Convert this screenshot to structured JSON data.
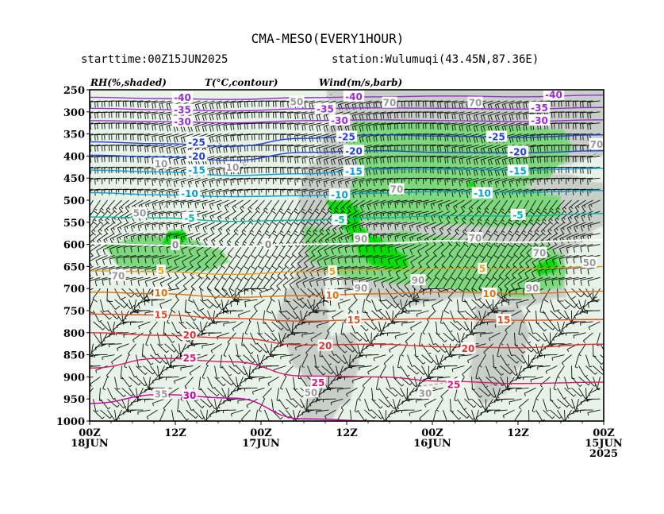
{
  "title": "CMA-MESO(EVERY1HOUR)",
  "starttime": "starttime:00Z15JUN2025",
  "station": "station:Wulumuqi(43.45N,87.36E)",
  "legend": {
    "rh": "RH(%,shaded)",
    "temp": "T(°C,contour)",
    "wind": "Wind(m/s,barb)"
  },
  "chart_data": {
    "type": "heatmap",
    "x_ticks": [
      {
        "hours": 0,
        "line1": "00Z",
        "line2": "18JUN",
        "line3": ""
      },
      {
        "hours": 12,
        "line1": "12Z",
        "line2": "",
        "line3": ""
      },
      {
        "hours": 24,
        "line1": "00Z",
        "line2": "17JUN",
        "line3": ""
      },
      {
        "hours": 36,
        "line1": "12Z",
        "line2": "",
        "line3": ""
      },
      {
        "hours": 48,
        "line1": "00Z",
        "line2": "16JUN",
        "line3": ""
      },
      {
        "hours": 60,
        "line1": "12Z",
        "line2": "",
        "line3": ""
      },
      {
        "hours": 72,
        "line1": "00Z",
        "line2": "15JUN",
        "line3": "2025"
      }
    ],
    "y_levels_hPa": [
      250,
      300,
      350,
      400,
      450,
      500,
      550,
      600,
      650,
      700,
      750,
      800,
      850,
      900,
      950,
      1000
    ],
    "ylim": [
      1000,
      250
    ],
    "x_range_hours": [
      0,
      72
    ],
    "rh_shading": [
      {
        "range": "> 90",
        "color": "#00e000"
      },
      {
        "range": "80-90",
        "color": "#7ed87e"
      },
      {
        "range": "70-80",
        "color": "#c8cfc8"
      },
      {
        "range": "< 70",
        "color": "#e8f3e8"
      }
    ],
    "temperature_contours": [
      {
        "value": -40,
        "color": "#9a2bd6",
        "points": [
          [
            0,
            267
          ],
          [
            10,
            270
          ],
          [
            20,
            272
          ],
          [
            30,
            268
          ],
          [
            40,
            266
          ],
          [
            50,
            264
          ],
          [
            60,
            266
          ],
          [
            72,
            262
          ]
        ],
        "labels": [
          [
            13,
            268,
            "-40"
          ],
          [
            37,
            266,
            "-40"
          ],
          [
            65,
            262,
            "-40"
          ]
        ]
      },
      {
        "value": -35,
        "color": "#9a2bd6",
        "points": [
          [
            0,
            292
          ],
          [
            10,
            295
          ],
          [
            20,
            298
          ],
          [
            30,
            293
          ],
          [
            40,
            291
          ],
          [
            50,
            292
          ],
          [
            60,
            294
          ],
          [
            72,
            290
          ]
        ],
        "labels": [
          [
            13,
            296,
            "-35"
          ],
          [
            33,
            294,
            "-35"
          ],
          [
            63,
            291,
            "-35"
          ]
        ]
      },
      {
        "value": -30,
        "color": "#9a2bd6",
        "points": [
          [
            0,
            320
          ],
          [
            10,
            322
          ],
          [
            20,
            325
          ],
          [
            30,
            320
          ],
          [
            40,
            318
          ],
          [
            50,
            320
          ],
          [
            60,
            322
          ],
          [
            72,
            318
          ]
        ],
        "labels": [
          [
            13,
            323,
            "-30"
          ],
          [
            35,
            320,
            "-30"
          ],
          [
            63,
            320,
            "-30"
          ]
        ]
      },
      {
        "value": -25,
        "color": "#2040e0",
        "points": [
          [
            0,
            368
          ],
          [
            10,
            372
          ],
          [
            20,
            378
          ],
          [
            30,
            360
          ],
          [
            40,
            352
          ],
          [
            50,
            355
          ],
          [
            60,
            358
          ],
          [
            72,
            352
          ]
        ],
        "labels": [
          [
            15,
            370,
            "-25"
          ],
          [
            36,
            357,
            "-25"
          ],
          [
            57,
            357,
            "-25"
          ]
        ]
      },
      {
        "value": -20,
        "color": "#2040e0",
        "points": [
          [
            0,
            398
          ],
          [
            10,
            402
          ],
          [
            20,
            410
          ],
          [
            30,
            392
          ],
          [
            40,
            388
          ],
          [
            50,
            392
          ],
          [
            60,
            393
          ],
          [
            72,
            388
          ]
        ],
        "labels": [
          [
            15,
            401,
            "-20"
          ],
          [
            37,
            389,
            "-20"
          ],
          [
            60,
            391,
            "-20"
          ]
        ]
      },
      {
        "value": -15,
        "color": "#00a0e0",
        "points": [
          [
            0,
            432
          ],
          [
            10,
            436
          ],
          [
            20,
            444
          ],
          [
            30,
            440
          ],
          [
            40,
            430
          ],
          [
            50,
            430
          ],
          [
            60,
            432
          ],
          [
            72,
            428
          ]
        ],
        "labels": [
          [
            15,
            433,
            "-15"
          ],
          [
            37,
            435,
            "-15"
          ],
          [
            60,
            434,
            "-15"
          ]
        ]
      },
      {
        "value": -10,
        "color": "#00a0d0",
        "points": [
          [
            0,
            483
          ],
          [
            10,
            488
          ],
          [
            20,
            492
          ],
          [
            30,
            490
          ],
          [
            40,
            484
          ],
          [
            50,
            480
          ],
          [
            60,
            482
          ],
          [
            72,
            478
          ]
        ],
        "labels": [
          [
            14,
            486,
            "-10"
          ],
          [
            35,
            488,
            "-10"
          ],
          [
            55,
            485,
            "-10"
          ]
        ]
      },
      {
        "value": -5,
        "color": "#00b8a0",
        "points": [
          [
            0,
            538
          ],
          [
            10,
            540
          ],
          [
            20,
            548
          ],
          [
            30,
            545
          ],
          [
            40,
            540
          ],
          [
            50,
            535
          ],
          [
            60,
            536
          ],
          [
            72,
            530
          ]
        ],
        "labels": [
          [
            14,
            541,
            "-5"
          ],
          [
            35,
            545,
            "-5"
          ],
          [
            60,
            534,
            "-5"
          ]
        ]
      },
      {
        "value": 0,
        "color": "#ffffff",
        "points": [
          [
            0,
            598
          ],
          [
            10,
            602
          ],
          [
            20,
            605
          ],
          [
            30,
            600
          ],
          [
            40,
            598
          ],
          [
            50,
            592
          ],
          [
            60,
            595
          ],
          [
            72,
            590
          ]
        ],
        "labels": [
          [
            12,
            602,
            "0"
          ],
          [
            25,
            601,
            "0"
          ]
        ]
      },
      {
        "value": 5,
        "color": "#e8a020",
        "points": [
          [
            0,
            660
          ],
          [
            10,
            662
          ],
          [
            20,
            668
          ],
          [
            30,
            662
          ],
          [
            40,
            658
          ],
          [
            50,
            655
          ],
          [
            60,
            655
          ],
          [
            72,
            650
          ]
        ],
        "labels": [
          [
            10,
            660,
            "5"
          ],
          [
            34,
            662,
            "5"
          ],
          [
            55,
            656,
            "5"
          ]
        ]
      },
      {
        "value": 10,
        "color": "#e07010",
        "points": [
          [
            0,
            708
          ],
          [
            10,
            712
          ],
          [
            20,
            720
          ],
          [
            30,
            716
          ],
          [
            40,
            712
          ],
          [
            50,
            708
          ],
          [
            60,
            712
          ],
          [
            72,
            706
          ]
        ],
        "labels": [
          [
            10,
            710,
            "10"
          ],
          [
            34,
            716,
            "10"
          ],
          [
            56,
            712,
            "10"
          ]
        ]
      },
      {
        "value": 15,
        "color": "#e05020",
        "points": [
          [
            0,
            758
          ],
          [
            10,
            760
          ],
          [
            20,
            768
          ],
          [
            30,
            774
          ],
          [
            40,
            770
          ],
          [
            50,
            768
          ],
          [
            60,
            772
          ],
          [
            72,
            770
          ]
        ],
        "labels": [
          [
            10,
            760,
            "15"
          ],
          [
            37,
            772,
            "15"
          ],
          [
            58,
            772,
            "15"
          ]
        ]
      },
      {
        "value": 20,
        "color": "#e03030",
        "points": [
          [
            0,
            800
          ],
          [
            10,
            806
          ],
          [
            20,
            812
          ],
          [
            30,
            828
          ],
          [
            40,
            826
          ],
          [
            50,
            832
          ],
          [
            60,
            834
          ],
          [
            72,
            826
          ]
        ],
        "labels": [
          [
            14,
            806,
            "20"
          ],
          [
            33,
            830,
            "20"
          ],
          [
            53,
            836,
            "20"
          ]
        ]
      },
      {
        "value": 25,
        "color": "#d81870",
        "points": [
          [
            0,
            880
          ],
          [
            10,
            858
          ],
          [
            20,
            866
          ],
          [
            30,
            898
          ],
          [
            40,
            900
          ],
          [
            50,
            910
          ],
          [
            60,
            915
          ],
          [
            72,
            912
          ]
        ],
        "labels": [
          [
            14,
            858,
            "25"
          ],
          [
            32,
            914,
            "25"
          ],
          [
            51,
            918,
            "25"
          ]
        ]
      },
      {
        "value": 30,
        "color": "#c800a0",
        "points": [
          [
            0,
            960
          ],
          [
            10,
            940
          ],
          [
            20,
            948
          ],
          [
            30,
            995
          ],
          [
            40,
            1000
          ]
        ],
        "labels": [
          [
            14,
            942,
            "30"
          ]
        ]
      }
    ],
    "rh_contour_labels": [
      {
        "hours": 29,
        "hPa": 278,
        "text": "50"
      },
      {
        "hours": 42,
        "hPa": 280,
        "text": "70"
      },
      {
        "hours": 54,
        "hPa": 280,
        "text": "70"
      },
      {
        "hours": 71,
        "hPa": 374,
        "text": "70"
      },
      {
        "hours": 10,
        "hPa": 418,
        "text": "10"
      },
      {
        "hours": 20,
        "hPa": 426,
        "text": "10"
      },
      {
        "hours": 43,
        "hPa": 476,
        "text": "70"
      },
      {
        "hours": 7,
        "hPa": 530,
        "text": "50"
      },
      {
        "hours": 38,
        "hPa": 588,
        "text": "90"
      },
      {
        "hours": 54,
        "hPa": 586,
        "text": "70"
      },
      {
        "hours": 63,
        "hPa": 620,
        "text": "70"
      },
      {
        "hours": 4,
        "hPa": 672,
        "text": "70"
      },
      {
        "hours": 38,
        "hPa": 700,
        "text": "90"
      },
      {
        "hours": 46,
        "hPa": 682,
        "text": "90"
      },
      {
        "hours": 62,
        "hPa": 700,
        "text": "90"
      },
      {
        "hours": 70,
        "hPa": 642,
        "text": "50"
      },
      {
        "hours": 31,
        "hPa": 936,
        "text": "50"
      },
      {
        "hours": 47,
        "hPa": 938,
        "text": "30"
      },
      {
        "hours": 10,
        "hPa": 940,
        "text": "35"
      }
    ]
  }
}
